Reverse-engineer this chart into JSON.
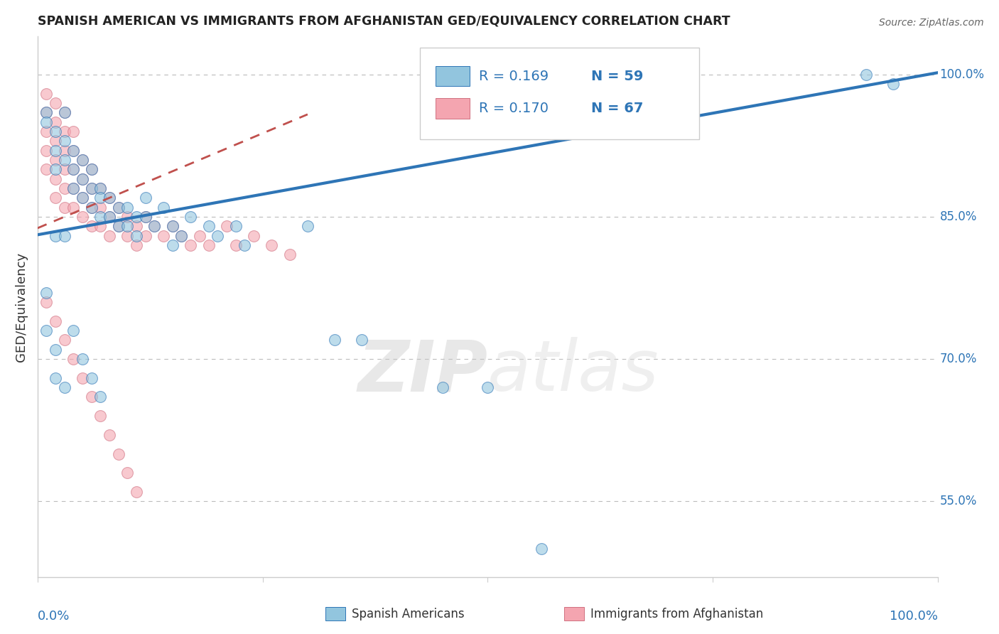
{
  "title": "SPANISH AMERICAN VS IMMIGRANTS FROM AFGHANISTAN GED/EQUIVALENCY CORRELATION CHART",
  "source": "Source: ZipAtlas.com",
  "ylabel": "GED/Equivalency",
  "legend_blue_r": "R = 0.169",
  "legend_blue_n": "N = 59",
  "legend_pink_r": "R = 0.170",
  "legend_pink_n": "N = 67",
  "legend_label_blue": "Spanish Americans",
  "legend_label_pink": "Immigrants from Afghanistan",
  "xlim": [
    0.0,
    1.0
  ],
  "ylim": [
    0.47,
    1.04
  ],
  "yticks": [
    0.55,
    0.7,
    0.85,
    1.0
  ],
  "ytick_labels": [
    "55.0%",
    "70.0%",
    "85.0%",
    "100.0%"
  ],
  "xticks": [
    0.0,
    0.25,
    0.5,
    0.75,
    1.0
  ],
  "blue_color": "#92C5DE",
  "pink_color": "#F4A5B0",
  "trend_blue_color": "#2E75B6",
  "trend_pink_color": "#C0504D",
  "background_color": "#FFFFFF",
  "watermark_zip": "ZIP",
  "watermark_atlas": "atlas",
  "blue_scatter_x": [
    0.01,
    0.01,
    0.02,
    0.02,
    0.02,
    0.03,
    0.03,
    0.03,
    0.04,
    0.04,
    0.04,
    0.05,
    0.05,
    0.05,
    0.06,
    0.06,
    0.06,
    0.07,
    0.07,
    0.07,
    0.08,
    0.08,
    0.09,
    0.09,
    0.1,
    0.1,
    0.11,
    0.11,
    0.12,
    0.12,
    0.13,
    0.14,
    0.15,
    0.15,
    0.16,
    0.17,
    0.19,
    0.2,
    0.22,
    0.23,
    0.01,
    0.01,
    0.02,
    0.02,
    0.03,
    0.04,
    0.05,
    0.06,
    0.07,
    0.02,
    0.03,
    0.3,
    0.33,
    0.36,
    0.45,
    0.5,
    0.56,
    0.92,
    0.95
  ],
  "blue_scatter_y": [
    0.96,
    0.95,
    0.94,
    0.92,
    0.9,
    0.96,
    0.93,
    0.91,
    0.92,
    0.9,
    0.88,
    0.91,
    0.89,
    0.87,
    0.9,
    0.88,
    0.86,
    0.88,
    0.87,
    0.85,
    0.87,
    0.85,
    0.86,
    0.84,
    0.86,
    0.84,
    0.85,
    0.83,
    0.87,
    0.85,
    0.84,
    0.86,
    0.84,
    0.82,
    0.83,
    0.85,
    0.84,
    0.83,
    0.84,
    0.82,
    0.77,
    0.73,
    0.71,
    0.68,
    0.67,
    0.73,
    0.7,
    0.68,
    0.66,
    0.83,
    0.83,
    0.84,
    0.72,
    0.72,
    0.67,
    0.67,
    0.5,
    1.0,
    0.99
  ],
  "pink_scatter_x": [
    0.01,
    0.01,
    0.01,
    0.01,
    0.01,
    0.02,
    0.02,
    0.02,
    0.02,
    0.02,
    0.02,
    0.03,
    0.03,
    0.03,
    0.03,
    0.03,
    0.03,
    0.04,
    0.04,
    0.04,
    0.04,
    0.04,
    0.05,
    0.05,
    0.05,
    0.05,
    0.06,
    0.06,
    0.06,
    0.06,
    0.07,
    0.07,
    0.07,
    0.08,
    0.08,
    0.08,
    0.09,
    0.09,
    0.1,
    0.1,
    0.11,
    0.11,
    0.12,
    0.12,
    0.13,
    0.14,
    0.15,
    0.16,
    0.17,
    0.18,
    0.19,
    0.21,
    0.22,
    0.24,
    0.26,
    0.28,
    0.01,
    0.02,
    0.03,
    0.04,
    0.05,
    0.06,
    0.07,
    0.08,
    0.09,
    0.1,
    0.11
  ],
  "pink_scatter_y": [
    0.98,
    0.96,
    0.94,
    0.92,
    0.9,
    0.97,
    0.95,
    0.93,
    0.91,
    0.89,
    0.87,
    0.96,
    0.94,
    0.92,
    0.9,
    0.88,
    0.86,
    0.94,
    0.92,
    0.9,
    0.88,
    0.86,
    0.91,
    0.89,
    0.87,
    0.85,
    0.9,
    0.88,
    0.86,
    0.84,
    0.88,
    0.86,
    0.84,
    0.87,
    0.85,
    0.83,
    0.86,
    0.84,
    0.85,
    0.83,
    0.84,
    0.82,
    0.85,
    0.83,
    0.84,
    0.83,
    0.84,
    0.83,
    0.82,
    0.83,
    0.82,
    0.84,
    0.82,
    0.83,
    0.82,
    0.81,
    0.76,
    0.74,
    0.72,
    0.7,
    0.68,
    0.66,
    0.64,
    0.62,
    0.6,
    0.58,
    0.56
  ],
  "blue_trend_x": [
    0.0,
    1.0
  ],
  "blue_trend_y": [
    0.831,
    1.002
  ],
  "pink_trend_x": [
    0.0,
    0.3
  ],
  "pink_trend_y": [
    0.838,
    0.958
  ]
}
